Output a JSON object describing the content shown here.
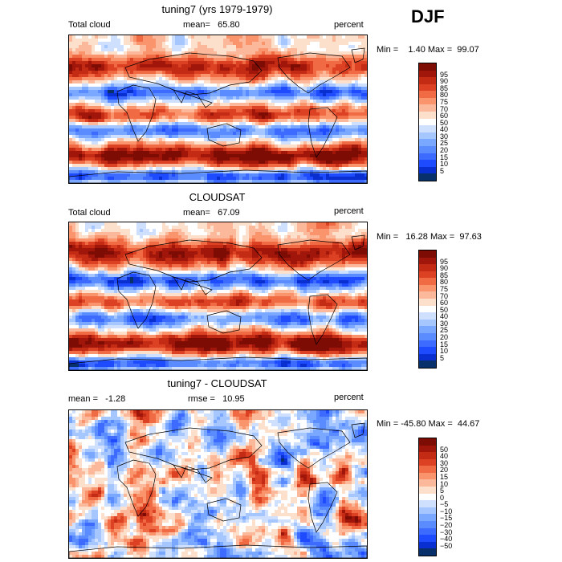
{
  "season": "DJF",
  "panels": [
    {
      "title": "tuning7 (yrs 1979-1979)",
      "left_label": "Total cloud",
      "center_label": "mean=   65.80",
      "right_label": "percent",
      "minmax": "Min =    1.40 Max =  99.07",
      "colorbar_colors": [
        "#08306b",
        "#0a2fd0",
        "#1f4bff",
        "#3d6bff",
        "#5b8cff",
        "#7aa7ff",
        "#a6c6ff",
        "#cfe0ff",
        "#ffffff",
        "#fde0cc",
        "#fbb89a",
        "#f9946c",
        "#f06a44",
        "#dd4124",
        "#c42b14",
        "#a1160a",
        "#7d0c05"
      ],
      "colorbar_labels": [
        "95",
        "90",
        "85",
        "80",
        "75",
        "70",
        "60",
        "50",
        "40",
        "30",
        "25",
        "20",
        "15",
        "10",
        "5"
      ],
      "field": "abs"
    },
    {
      "title": "CLOUDSAT",
      "left_label": "Total cloud",
      "center_label": "mean=   67.09",
      "right_label": "percent",
      "minmax": "Min =   16.28 Max =  97.63",
      "colorbar_colors": [
        "#08306b",
        "#0a2fd0",
        "#1f4bff",
        "#3d6bff",
        "#5b8cff",
        "#7aa7ff",
        "#a6c6ff",
        "#cfe0ff",
        "#ffffff",
        "#fde0cc",
        "#fbb89a",
        "#f9946c",
        "#f06a44",
        "#dd4124",
        "#c42b14",
        "#a1160a",
        "#7d0c05"
      ],
      "colorbar_labels": [
        "95",
        "90",
        "85",
        "80",
        "75",
        "70",
        "60",
        "50",
        "40",
        "30",
        "25",
        "20",
        "15",
        "10",
        "5"
      ],
      "field": "obs"
    },
    {
      "title": "tuning7 - CLOUDSAT",
      "left_label": "mean =   -1.28",
      "center_label": "rmse =   10.95",
      "right_label": "percent",
      "minmax": "Min = -45.80 Max =  44.67",
      "colorbar_colors": [
        "#08306b",
        "#0a2fd0",
        "#1f4bff",
        "#3d6bff",
        "#5b8cff",
        "#7aa7ff",
        "#a6c6ff",
        "#cfe0ff",
        "#ffffff",
        "#fde0cc",
        "#fbb89a",
        "#f9946c",
        "#f06a44",
        "#dd4124",
        "#c42b14",
        "#a1160a",
        "#7d0c05"
      ],
      "colorbar_labels": [
        "50",
        "40",
        "30",
        "20",
        "15",
        "10",
        "5",
        "0",
        "−5",
        "−10",
        "−15",
        "−20",
        "−30",
        "−40",
        "−50"
      ],
      "field": "diff"
    }
  ]
}
